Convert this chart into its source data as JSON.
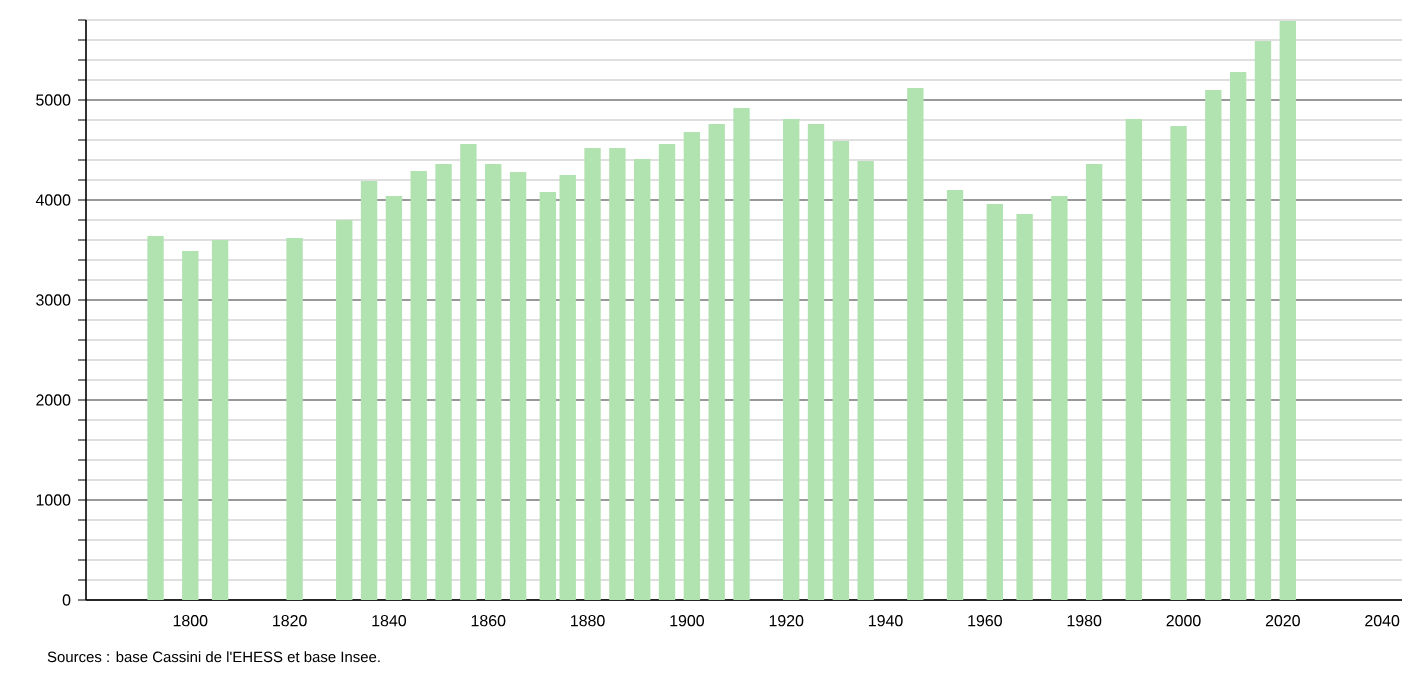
{
  "chart_data": {
    "type": "bar",
    "x": [
      1793,
      1800,
      1806,
      1821,
      1831,
      1836,
      1841,
      1846,
      1851,
      1856,
      1861,
      1866,
      1872,
      1876,
      1881,
      1886,
      1891,
      1896,
      1901,
      1906,
      1911,
      1921,
      1926,
      1931,
      1936,
      1946,
      1954,
      1962,
      1968,
      1975,
      1982,
      1990,
      1999,
      2006,
      2011,
      2016,
      2021
    ],
    "values": [
      3640,
      3490,
      3600,
      3620,
      3800,
      4190,
      4040,
      4290,
      4360,
      4560,
      4360,
      4280,
      4080,
      4250,
      4520,
      4520,
      4410,
      4560,
      4680,
      4760,
      4920,
      4810,
      4760,
      4590,
      4390,
      5120,
      4100,
      3960,
      3860,
      4040,
      4360,
      4810,
      4740,
      5100,
      5280,
      5590,
      5790
    ],
    "color": "#b1e3b1",
    "xlim": [
      1779,
      2044
    ],
    "xticks": [
      1800,
      1820,
      1840,
      1860,
      1880,
      1900,
      1920,
      1940,
      1960,
      1980,
      2000,
      2020,
      2040
    ],
    "ylim": [
      0,
      5800
    ],
    "yticks": [
      0,
      {
        "value": 200,
        "label": null
      },
      {
        "value": 400,
        "label": null
      },
      {
        "value": 600,
        "label": null
      },
      {
        "value": 800,
        "label": null
      },
      1000,
      {
        "value": 1200,
        "label": null
      },
      {
        "value": 1400,
        "label": null
      },
      {
        "value": 1600,
        "label": null
      },
      {
        "value": 1800,
        "label": null
      },
      2000,
      {
        "value": 2200,
        "label": null
      },
      {
        "value": 2400,
        "label": null
      },
      {
        "value": 2600,
        "label": null
      },
      {
        "value": 2800,
        "label": null
      },
      3000,
      {
        "value": 3200,
        "label": null
      },
      {
        "value": 3400,
        "label": null
      },
      {
        "value": 3600,
        "label": null
      },
      {
        "value": 3800,
        "label": null
      },
      4000,
      {
        "value": 4200,
        "label": null
      },
      {
        "value": 4400,
        "label": null
      },
      {
        "value": 4600,
        "label": null
      },
      {
        "value": 4800,
        "label": null
      },
      5000,
      {
        "value": 5200,
        "label": null
      },
      {
        "value": 5400,
        "label": null
      },
      {
        "value": 5600,
        "label": null
      },
      {
        "value": 5800,
        "label": null
      }
    ],
    "grid": "y",
    "annotations": [
      "Sources : base Cassini de l'EHESS et base Insee."
    ]
  }
}
